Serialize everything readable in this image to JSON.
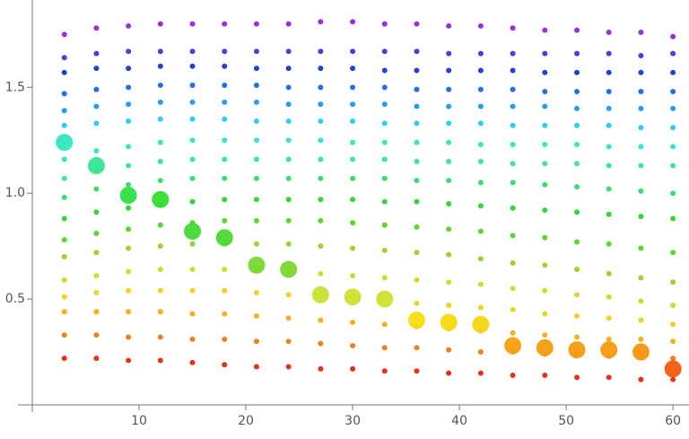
{
  "chart_data": {
    "type": "scatter",
    "x": [
      3,
      6,
      9,
      12,
      15,
      18,
      21,
      24,
      27,
      30,
      33,
      36,
      39,
      42,
      45,
      48,
      51,
      54,
      57,
      60
    ],
    "series": [
      {
        "color": "#9a2fe0",
        "marker": "small",
        "values": [
          1.75,
          1.78,
          1.79,
          1.8,
          1.8,
          1.8,
          1.8,
          1.8,
          1.81,
          1.81,
          1.8,
          1.8,
          1.79,
          1.79,
          1.78,
          1.77,
          1.77,
          1.76,
          1.76,
          1.74
        ]
      },
      {
        "color": "#5a35e0",
        "marker": "small",
        "values": [
          1.64,
          1.66,
          1.67,
          1.67,
          1.67,
          1.67,
          1.67,
          1.67,
          1.67,
          1.67,
          1.67,
          1.67,
          1.66,
          1.66,
          1.66,
          1.66,
          1.66,
          1.66,
          1.65,
          1.66
        ]
      },
      {
        "color": "#2040d8",
        "marker": "small",
        "values": [
          1.57,
          1.59,
          1.59,
          1.6,
          1.6,
          1.6,
          1.59,
          1.59,
          1.59,
          1.59,
          1.58,
          1.58,
          1.58,
          1.58,
          1.58,
          1.57,
          1.57,
          1.57,
          1.57,
          1.57
        ]
      },
      {
        "color": "#2070e6",
        "marker": "small",
        "values": [
          1.47,
          1.49,
          1.5,
          1.51,
          1.51,
          1.51,
          1.51,
          1.5,
          1.5,
          1.5,
          1.5,
          1.49,
          1.49,
          1.49,
          1.49,
          1.48,
          1.48,
          1.48,
          1.48,
          1.48
        ]
      },
      {
        "color": "#22a0ee",
        "marker": "small",
        "values": [
          1.39,
          1.41,
          1.42,
          1.43,
          1.43,
          1.43,
          1.43,
          1.42,
          1.42,
          1.42,
          1.42,
          1.41,
          1.41,
          1.41,
          1.41,
          1.41,
          1.4,
          1.4,
          1.4,
          1.4
        ]
      },
      {
        "color": "#2ccff2",
        "marker": "small",
        "values": [
          1.32,
          1.33,
          1.34,
          1.35,
          1.35,
          1.35,
          1.34,
          1.34,
          1.34,
          1.34,
          1.33,
          1.33,
          1.33,
          1.33,
          1.32,
          1.32,
          1.32,
          1.32,
          1.31,
          1.31
        ]
      },
      {
        "color": "#33e6cc",
        "marker": "small",
        "values": [
          1.16,
          1.2,
          1.22,
          1.24,
          1.25,
          1.25,
          1.25,
          1.25,
          1.25,
          1.24,
          1.24,
          1.24,
          1.24,
          1.23,
          1.23,
          1.23,
          1.23,
          1.22,
          1.22,
          1.22
        ]
      },
      {
        "color": "#38e6a0",
        "marker": "small",
        "values": [
          1.07,
          1.11,
          1.13,
          1.15,
          1.16,
          1.16,
          1.16,
          1.16,
          1.16,
          1.16,
          1.16,
          1.15,
          1.15,
          1.15,
          1.14,
          1.14,
          1.14,
          1.13,
          1.13,
          1.13
        ]
      },
      {
        "color": "#36e070",
        "marker": "small",
        "values": [
          0.98,
          1.02,
          1.04,
          1.06,
          1.07,
          1.07,
          1.07,
          1.07,
          1.07,
          1.07,
          1.07,
          1.06,
          1.06,
          1.05,
          1.05,
          1.04,
          1.03,
          1.02,
          1.01,
          1.0
        ]
      },
      {
        "color": "#30d838",
        "marker": "small",
        "values": [
          0.88,
          0.91,
          0.93,
          0.95,
          0.96,
          0.97,
          0.97,
          0.97,
          0.97,
          0.97,
          0.96,
          0.96,
          0.95,
          0.94,
          0.93,
          0.92,
          0.91,
          0.9,
          0.89,
          0.88
        ]
      },
      {
        "color": "#5cd62a",
        "marker": "small",
        "values": [
          0.78,
          0.81,
          0.83,
          0.85,
          0.86,
          0.87,
          0.87,
          0.87,
          0.87,
          0.86,
          0.85,
          0.84,
          0.83,
          0.82,
          0.8,
          0.79,
          0.77,
          0.76,
          0.74,
          0.72
        ]
      },
      {
        "color": "#9ad52a",
        "marker": "small",
        "values": [
          0.7,
          0.72,
          0.74,
          0.75,
          0.76,
          0.76,
          0.76,
          0.76,
          0.75,
          0.74,
          0.73,
          0.72,
          0.71,
          0.69,
          0.67,
          0.66,
          0.64,
          0.62,
          0.6,
          0.58
        ]
      },
      {
        "color": "#d8d82a",
        "marker": "small",
        "values": [
          0.59,
          0.61,
          0.63,
          0.64,
          0.64,
          0.64,
          0.64,
          0.63,
          0.62,
          0.61,
          0.6,
          0.59,
          0.58,
          0.57,
          0.55,
          0.54,
          0.52,
          0.51,
          0.49,
          0.47
        ]
      },
      {
        "color": "#f2d21f",
        "marker": "small",
        "values": [
          0.51,
          0.53,
          0.54,
          0.54,
          0.54,
          0.54,
          0.53,
          0.52,
          0.51,
          0.5,
          0.49,
          0.48,
          0.47,
          0.46,
          0.45,
          0.43,
          0.42,
          0.41,
          0.4,
          0.38
        ]
      },
      {
        "color": "#f5b01c",
        "marker": "small",
        "values": [
          0.44,
          0.44,
          0.44,
          0.44,
          0.43,
          0.43,
          0.42,
          0.41,
          0.4,
          0.39,
          0.38,
          0.37,
          0.36,
          0.35,
          0.34,
          0.33,
          0.32,
          0.31,
          0.31,
          0.3
        ]
      },
      {
        "color": "#f0801a",
        "marker": "small",
        "values": [
          0.33,
          0.33,
          0.32,
          0.32,
          0.31,
          0.31,
          0.3,
          0.3,
          0.29,
          0.28,
          0.27,
          0.27,
          0.26,
          0.25,
          0.25,
          0.24,
          0.24,
          0.23,
          0.23,
          0.22
        ]
      },
      {
        "color": "#e83018",
        "marker": "small",
        "values": [
          0.22,
          0.22,
          0.21,
          0.21,
          0.2,
          0.19,
          0.18,
          0.18,
          0.17,
          0.17,
          0.16,
          0.16,
          0.15,
          0.15,
          0.14,
          0.14,
          0.13,
          0.13,
          0.12,
          0.12
        ]
      },
      {
        "marker": "large",
        "values": [
          1.24,
          1.13,
          0.99,
          0.97,
          0.82,
          0.79,
          0.66,
          0.64,
          0.52,
          0.51,
          0.5,
          0.4,
          0.39,
          0.38,
          0.28,
          0.27,
          0.26,
          0.26,
          0.25,
          0.17
        ],
        "colors": [
          "#33e6c0",
          "#35e690",
          "#2ee040",
          "#33dd33",
          "#44d833",
          "#4cd830",
          "#77d630",
          "#80d530",
          "#c8e030",
          "#cce030",
          "#d0e030",
          "#f5dc10",
          "#f5d810",
          "#f5d510",
          "#f5a010",
          "#f59e10",
          "#f59a10",
          "#f59a10",
          "#f59510",
          "#f05a10"
        ]
      }
    ],
    "xlim": [
      0,
      61.5
    ],
    "ylim": [
      0,
      1.9
    ],
    "xticks": [
      10,
      20,
      30,
      40,
      50,
      60
    ],
    "yticks": [
      0.5,
      {
        "value": 1,
        "label": "1.0"
      },
      1.5
    ]
  }
}
